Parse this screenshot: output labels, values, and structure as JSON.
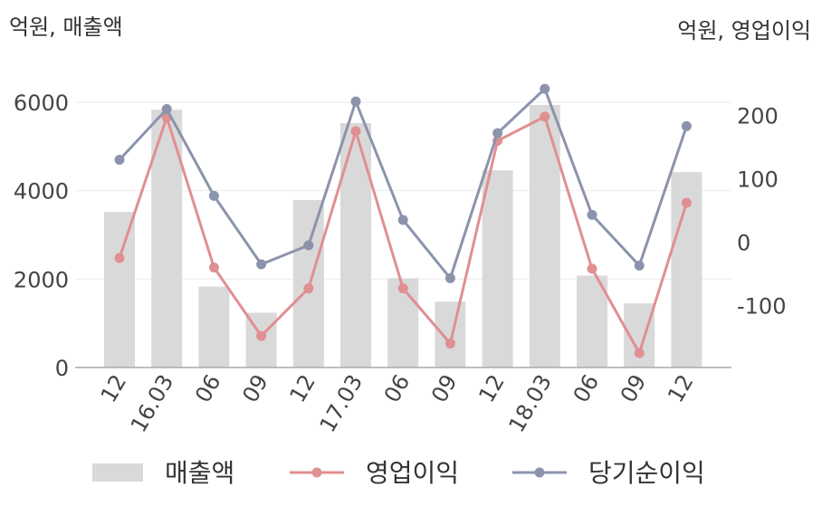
{
  "chart_data": {
    "type": "bar+line",
    "left_unit_label": "억원, 매출액",
    "right_unit_label": "억원, 영업이익",
    "categories": [
      "12",
      "16.03",
      "06",
      "09",
      "12",
      "17.03",
      "06",
      "09",
      "12",
      "18.03",
      "06",
      "09",
      "12"
    ],
    "left_axis": {
      "ylim": [
        0,
        6000
      ],
      "ticks": [
        "0",
        "2000",
        "4000",
        "6000"
      ]
    },
    "right_axis": {
      "ylim": [
        -200,
        250
      ],
      "ticks": [
        "-100",
        "0",
        "100",
        "200"
      ]
    },
    "series": [
      {
        "name": "매출액",
        "kind": "bar",
        "axis": "left",
        "color": "#d9d9d9",
        "values": [
          3520,
          5830,
          1830,
          1240,
          3790,
          5530,
          2020,
          1490,
          4460,
          5940,
          2080,
          1450,
          4420
        ]
      },
      {
        "name": "영업이익",
        "kind": "line",
        "axis": "right",
        "color": "#e08f92",
        "values": [
          -25,
          197,
          -40,
          -148,
          -73,
          175,
          -73,
          -160,
          160,
          198,
          -42,
          -175,
          62
        ]
      },
      {
        "name": "당기순이익",
        "kind": "line",
        "axis": "right",
        "color": "#8c93ad",
        "values": [
          130,
          210,
          73,
          -35,
          -5,
          222,
          35,
          -57,
          172,
          242,
          43,
          -37,
          183
        ]
      }
    ],
    "grid": true,
    "legend_position": "bottom"
  }
}
